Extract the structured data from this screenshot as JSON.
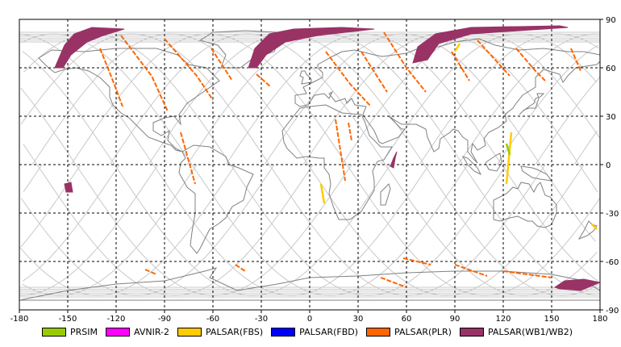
{
  "map": {
    "lon_ticks": [
      "-180",
      "-150",
      "-120",
      "-90",
      "-60",
      "-30",
      "0",
      "30",
      "60",
      "90",
      "120",
      "150",
      "180"
    ],
    "lat_ticks": [
      "90",
      "60",
      "30",
      "0",
      "-30",
      "-60",
      "-90"
    ],
    "lon_values": [
      -180,
      -150,
      -120,
      -90,
      -60,
      -30,
      0,
      30,
      60,
      90,
      120,
      150,
      180
    ],
    "lat_values": [
      90,
      60,
      30,
      0,
      -30,
      -60,
      -90
    ],
    "grid": "dashed",
    "colors": {
      "coastline": "#808080",
      "orbit_track": "#c8c8c8",
      "grid": "#000000"
    },
    "wide_swaths": [
      [
        [
          -158,
          60
        ],
        [
          -152,
          74
        ],
        [
          -146,
          81
        ],
        [
          -135,
          85
        ],
        [
          -115,
          84
        ],
        [
          -128,
          80
        ],
        [
          -138,
          76
        ],
        [
          -148,
          68
        ],
        [
          -153,
          60
        ]
      ],
      [
        [
          -38,
          60
        ],
        [
          -34,
          72
        ],
        [
          -25,
          81
        ],
        [
          -10,
          84
        ],
        [
          20,
          85
        ],
        [
          40,
          84
        ],
        [
          5,
          80
        ],
        [
          -15,
          76
        ],
        [
          -27,
          68
        ],
        [
          -33,
          60
        ]
      ],
      [
        [
          64,
          63
        ],
        [
          67,
          73
        ],
        [
          78,
          81
        ],
        [
          100,
          85
        ],
        [
          155,
          86
        ],
        [
          160,
          85
        ],
        [
          100,
          81
        ],
        [
          80,
          75
        ],
        [
          73,
          65
        ]
      ],
      [
        [
          152,
          -76
        ],
        [
          158,
          -72
        ],
        [
          170,
          -71
        ],
        [
          180,
          -73
        ],
        [
          168,
          -78
        ],
        [
          155,
          -77
        ]
      ],
      [
        [
          50,
          -1
        ],
        [
          52,
          4
        ],
        [
          54,
          8
        ],
        [
          53,
          4
        ],
        [
          52,
          -2
        ]
      ],
      [
        [
          -152,
          -12
        ],
        [
          -148,
          -11
        ],
        [
          -147,
          -17
        ],
        [
          -151,
          -17
        ]
      ]
    ],
    "fine_tracks": [
      [
        [
          -130,
          72
        ],
        [
          -122,
          52
        ],
        [
          -116,
          36
        ]
      ],
      [
        [
          -117,
          80
        ],
        [
          -98,
          55
        ],
        [
          -88,
          33
        ]
      ],
      [
        [
          -90,
          78
        ],
        [
          -70,
          55
        ],
        [
          -60,
          40
        ]
      ],
      [
        [
          -61,
          72
        ],
        [
          -48,
          52
        ]
      ],
      [
        [
          -33,
          56
        ],
        [
          -24,
          48
        ]
      ],
      [
        [
          10,
          70
        ],
        [
          25,
          50
        ],
        [
          38,
          36
        ]
      ],
      [
        [
          32,
          70
        ],
        [
          48,
          45
        ]
      ],
      [
        [
          46,
          82
        ],
        [
          60,
          60
        ],
        [
          72,
          45
        ]
      ],
      [
        [
          88,
          70
        ],
        [
          99,
          52
        ]
      ],
      [
        [
          104,
          77
        ],
        [
          124,
          55
        ]
      ],
      [
        [
          128,
          72
        ],
        [
          140,
          58
        ],
        [
          146,
          52
        ]
      ],
      [
        [
          162,
          72
        ],
        [
          168,
          58
        ]
      ],
      [
        [
          16,
          28
        ],
        [
          22,
          -10
        ]
      ],
      [
        [
          24,
          26
        ],
        [
          26,
          15
        ]
      ],
      [
        [
          -80,
          20
        ],
        [
          -71,
          -12
        ]
      ],
      [
        [
          58,
          -58
        ],
        [
          75,
          -62
        ]
      ],
      [
        [
          90,
          -62
        ],
        [
          110,
          -69
        ]
      ],
      [
        [
          120,
          -66
        ],
        [
          150,
          -70
        ]
      ],
      [
        [
          -102,
          -65
        ],
        [
          -95,
          -68
        ]
      ],
      [
        [
          -46,
          -62
        ],
        [
          -40,
          -66
        ]
      ],
      [
        [
          44,
          -70
        ],
        [
          60,
          -76
        ]
      ]
    ],
    "yellow_tracks": [
      [
        [
          125,
          20
        ],
        [
          122,
          -12
        ]
      ],
      [
        [
          93,
          75
        ],
        [
          90,
          70
        ]
      ],
      [
        [
          7,
          -12
        ],
        [
          9,
          -24
        ]
      ],
      [
        [
          175,
          -37
        ],
        [
          178,
          -40
        ]
      ]
    ],
    "green_tracks": [
      [
        [
          122,
          13
        ],
        [
          124,
          6
        ]
      ]
    ]
  },
  "legend": [
    {
      "label": "PRSIM",
      "color": "#99cc00"
    },
    {
      "label": "AVNIR-2",
      "color": "#ff00ff"
    },
    {
      "label": "PALSAR(FBS)",
      "color": "#ffcc00"
    },
    {
      "label": "PALSAR(FBD)",
      "color": "#0000ff"
    },
    {
      "label": "PALSAR(PLR)",
      "color": "#ff6600"
    },
    {
      "label": "PALSAR(WB1/WB2)",
      "color": "#993366"
    }
  ]
}
